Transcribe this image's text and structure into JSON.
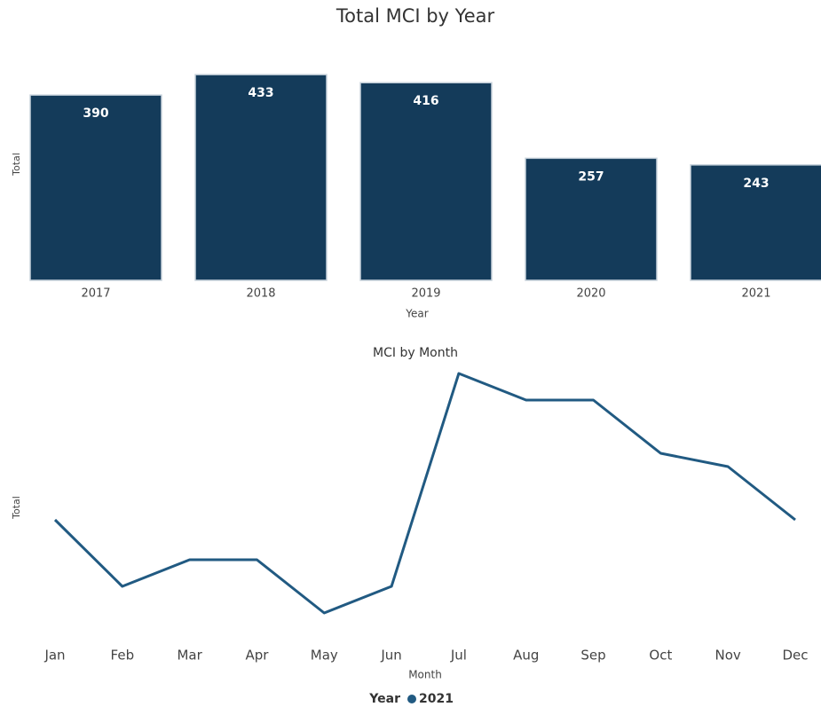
{
  "chart_data": [
    {
      "type": "bar",
      "title": "Total MCI by Year",
      "x_label": "Year",
      "y_label": "Total",
      "categories": [
        "2017",
        "2018",
        "2019",
        "2020",
        "2021"
      ],
      "values": [
        390,
        433,
        416,
        257,
        243
      ],
      "color": "#143b5a",
      "ylim": [
        0,
        450
      ]
    },
    {
      "type": "line",
      "title": "MCI by Month",
      "x_label": "Month",
      "y_label": "Total",
      "legend_title": "Year",
      "categories": [
        "Jan",
        "Feb",
        "Mar",
        "Apr",
        "May",
        "Jun",
        "Jul",
        "Aug",
        "Sep",
        "Oct",
        "Nov",
        "Dec"
      ],
      "series": [
        {
          "name": "2021",
          "color": "#215a82",
          "values": [
            19,
            14,
            16,
            16,
            12,
            14,
            30,
            28,
            28,
            24,
            23,
            19
          ]
        }
      ],
      "ylim": [
        10,
        31
      ]
    }
  ]
}
